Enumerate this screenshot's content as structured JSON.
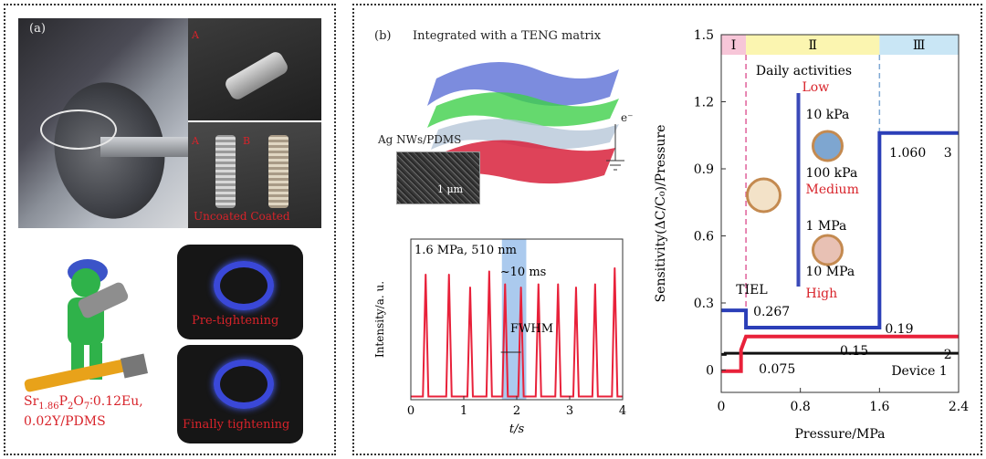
{
  "panel_a": {
    "label": "(a)",
    "markers": {
      "a_top": "A",
      "a_bottom": "A",
      "b_bottom": "B"
    },
    "screw_caption": "Uncoated Coated",
    "pre_tightening": "Pre-tightening",
    "finally_tightening": "Finally tightening",
    "formula_line1": "Sr",
    "formula_sub": "1.86",
    "formula_rest": "P",
    "formula_sub2": "2",
    "formula_o": "O",
    "formula_sub3": "7",
    "formula_tail": "∶0.12Eu,",
    "formula_line2": "0.02Y/PDMS"
  },
  "panel_b": {
    "label": "(b)",
    "teng_title": "Integrated with a TENG matrix",
    "electrode_label": "Ag NWs/PDMS",
    "electron_label": "e⁻",
    "scale_bar": "1 μm"
  },
  "chart_data": [
    {
      "type": "line",
      "annotation_top": "1.6 MPa, 510 nm",
      "pulse_width": "~10 ms",
      "fwhm": "FWHM",
      "ylabel": "Intensity/a. u.",
      "xlabel": "t/s",
      "x_ticks": [
        "0",
        "1",
        "2",
        "3",
        "4"
      ],
      "xlim": [
        0,
        4
      ],
      "peaks_t": [
        0.28,
        0.72,
        1.12,
        1.48,
        1.78,
        2.08,
        2.41,
        2.78,
        3.12,
        3.48,
        3.85
      ],
      "peaks_h": [
        0.78,
        0.78,
        0.7,
        0.8,
        0.72,
        0.7,
        0.72,
        0.72,
        0.7,
        0.72,
        0.82
      ],
      "highlight_t": [
        1.72,
        2.18
      ],
      "colors": {
        "line": "#e8213a",
        "highlight": "#8fb8e8"
      }
    },
    {
      "type": "line",
      "ylabel": "Sensitivity(ΔC/C₀)/Pressure",
      "xlabel": "Pressure/MPa",
      "x_ticks": [
        "0",
        "0.8",
        "1.6",
        "2.4"
      ],
      "y_ticks": [
        "0",
        "0.3",
        "0.6",
        "0.9",
        "1.2",
        "1.5"
      ],
      "xlim": [
        0,
        2.4
      ],
      "ylim": [
        -0.1,
        1.5
      ],
      "regions": [
        {
          "name": "Ⅰ",
          "x": [
            0,
            0.25
          ],
          "color": "#f7c6d8"
        },
        {
          "name": "Ⅱ",
          "x": [
            0.25,
            1.6
          ],
          "color": "#fbf5b0"
        },
        {
          "name": "Ⅲ",
          "x": [
            1.6,
            2.4
          ],
          "color": "#c9e6f5"
        }
      ],
      "series": [
        {
          "name": "1",
          "color": "#111111",
          "x": [
            0,
            0.04,
            0.04,
            2.4
          ],
          "y": [
            0.07,
            0.07,
            0.075,
            0.075
          ]
        },
        {
          "name": "2",
          "color": "#e8213a",
          "x": [
            0,
            0.2,
            0.2,
            0.25,
            0.25,
            2.4
          ],
          "y": [
            -0.005,
            -0.005,
            0.09,
            0.15,
            0.15,
            0.15
          ]
        },
        {
          "name": "3",
          "color": "#2b3fb8",
          "x": [
            0,
            0.25,
            0.25,
            1.6,
            1.6,
            2.4
          ],
          "y": [
            0.267,
            0.267,
            0.19,
            0.19,
            1.06,
            1.06
          ]
        }
      ],
      "annotations": {
        "tiel": "TIEL",
        "v0267": "0.267",
        "v019": "0.19",
        "v015": "0.15",
        "v0075": "0.075",
        "v1060": "1.060",
        "series3": "3",
        "series2": "2",
        "device1": "Device 1",
        "daily": "Daily activities",
        "low": "Low",
        "medium": "Medium",
        "high": "High",
        "p10k": "10 kPa",
        "p100k": "100 kPa",
        "p1m": "1 MPa",
        "p10m": "10 MPa"
      }
    }
  ]
}
